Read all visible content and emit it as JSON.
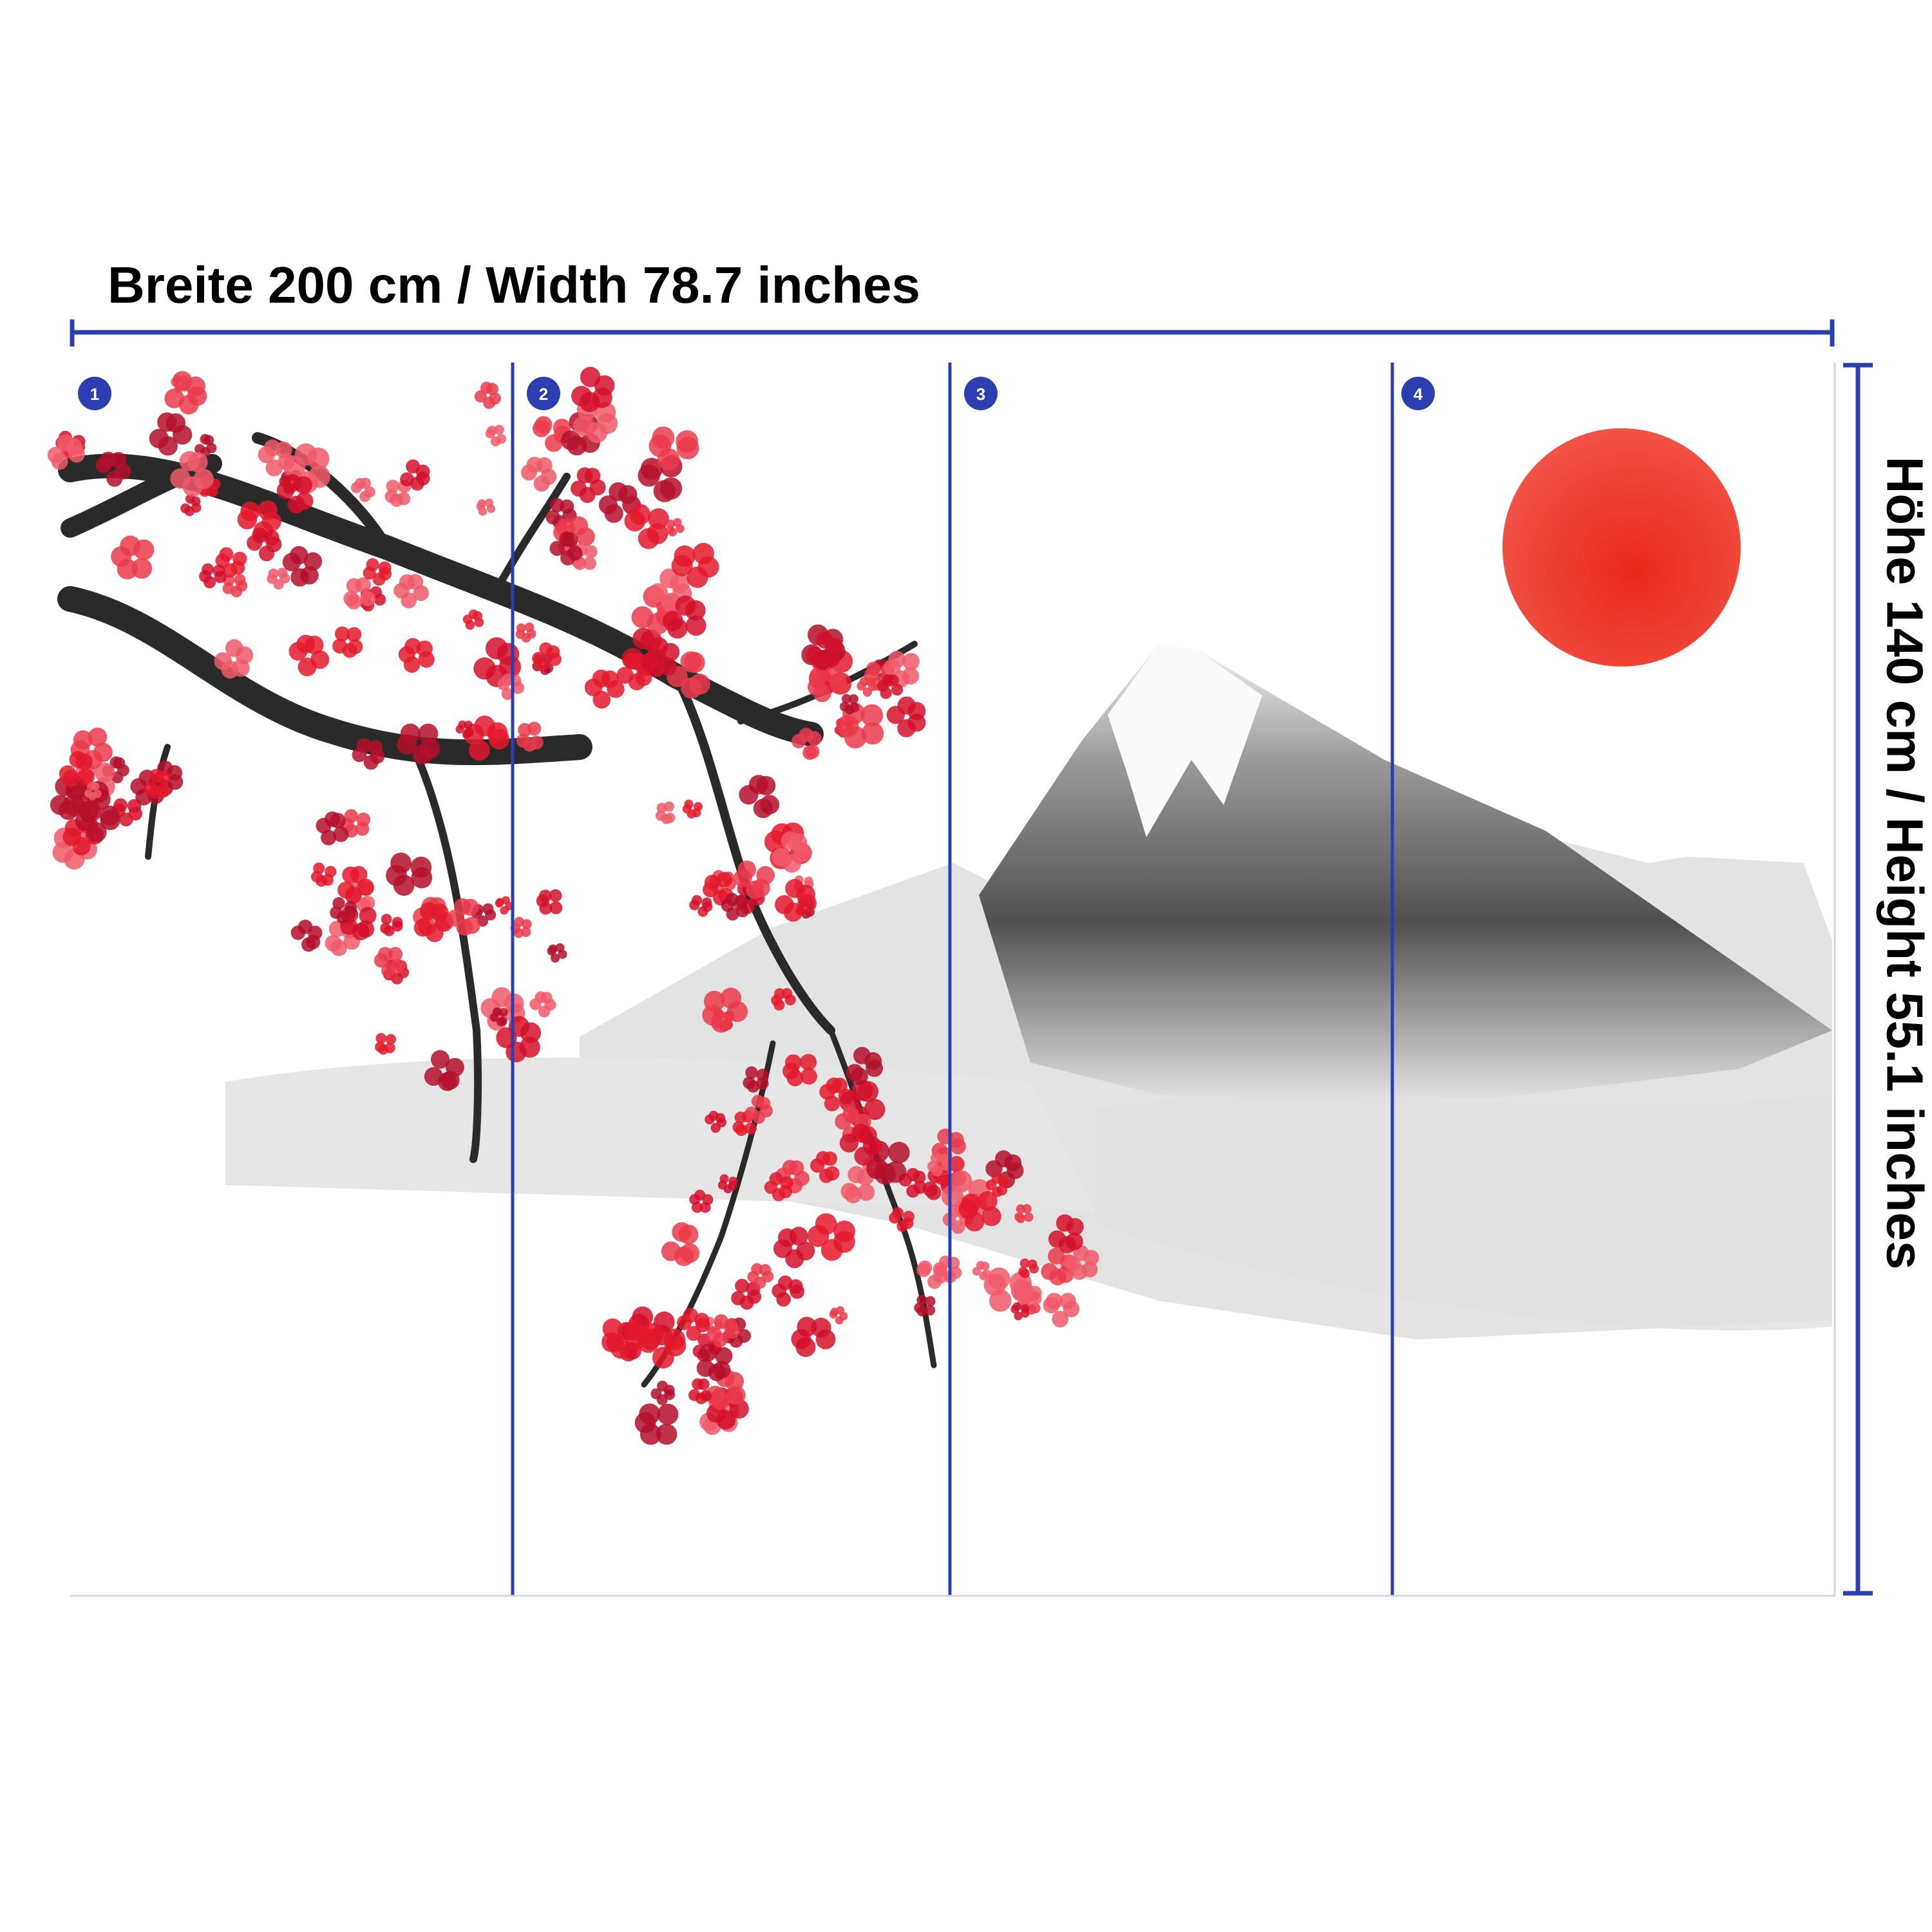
{
  "width_label": "Breite 200 cm / Width 78.7 inches",
  "height_label": "Höhe 140 cm / Height 55.1 inches",
  "panels": [
    "1",
    "2",
    "3",
    "4"
  ]
}
